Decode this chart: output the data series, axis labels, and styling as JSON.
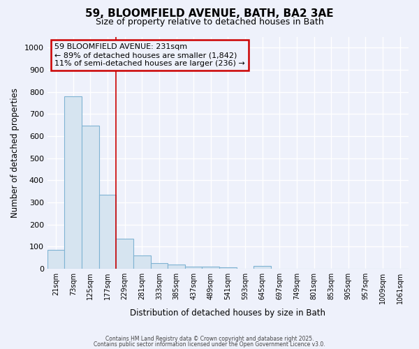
{
  "title_line1": "59, BLOOMFIELD AVENUE, BATH, BA2 3AE",
  "title_line2": "Size of property relative to detached houses in Bath",
  "xlabel": "Distribution of detached houses by size in Bath",
  "ylabel": "Number of detached properties",
  "categories": [
    "21sqm",
    "73sqm",
    "125sqm",
    "177sqm",
    "229sqm",
    "281sqm",
    "333sqm",
    "385sqm",
    "437sqm",
    "489sqm",
    "541sqm",
    "593sqm",
    "645sqm",
    "697sqm",
    "749sqm",
    "801sqm",
    "853sqm",
    "905sqm",
    "957sqm",
    "1009sqm",
    "1061sqm"
  ],
  "values": [
    85,
    780,
    648,
    335,
    135,
    60,
    25,
    20,
    8,
    8,
    5,
    0,
    12,
    0,
    0,
    0,
    0,
    0,
    0,
    0,
    0
  ],
  "bar_color": "#d6e4f0",
  "bar_edge_color": "#7fb3d3",
  "vline_x_index": 3,
  "vline_color": "#cc0000",
  "annotation_text": "59 BLOOMFIELD AVENUE: 231sqm\n← 89% of detached houses are smaller (1,842)\n11% of semi-detached houses are larger (236) →",
  "annotation_box_color": "#cc0000",
  "annotation_text_color": "#000000",
  "ylim": [
    0,
    1050
  ],
  "yticks": [
    0,
    100,
    200,
    300,
    400,
    500,
    600,
    700,
    800,
    900,
    1000
  ],
  "background_color": "#eef1fb",
  "grid_color": "#ffffff",
  "footer_line1": "Contains HM Land Registry data © Crown copyright and database right 2025.",
  "footer_line2": "Contains public sector information licensed under the Open Government Licence v3.0."
}
